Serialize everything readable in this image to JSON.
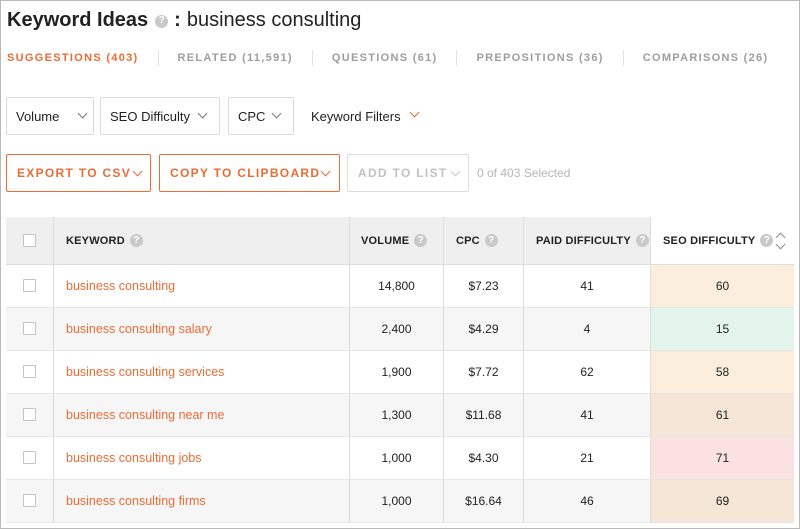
{
  "header": {
    "title": "Keyword Ideas",
    "help_icon": "question-icon",
    "separator": ":",
    "query": "business consulting"
  },
  "tabs": [
    {
      "label": "SUGGESTIONS (403)",
      "active": true
    },
    {
      "label": "RELATED (11,591)",
      "active": false
    },
    {
      "label": "QUESTIONS (61)",
      "active": false
    },
    {
      "label": "PREPOSITIONS (36)",
      "active": false
    },
    {
      "label": "COMPARISONS (26)",
      "active": false
    }
  ],
  "filters": {
    "volume": "Volume",
    "seo_difficulty": "SEO Difficulty",
    "cpc": "CPC",
    "keyword_filters": "Keyword Filters"
  },
  "actions": {
    "export": "EXPORT TO CSV",
    "copy": "COPY TO CLIPBOARD",
    "add_to_list": "ADD TO LIST",
    "selected_status": "0 of 403 Selected"
  },
  "table": {
    "columns": {
      "keyword": "KEYWORD",
      "volume": "VOLUME",
      "cpc": "CPC",
      "paid_difficulty": "PAID DIFFICULTY",
      "seo_difficulty": "SEO DIFFICULTY"
    },
    "rows": [
      {
        "keyword": "business consulting",
        "volume": "14,800",
        "cpc": "$7.23",
        "paid_difficulty": "41",
        "seo_difficulty": "60",
        "seo_color": "#fbeedd"
      },
      {
        "keyword": "business consulting salary",
        "volume": "2,400",
        "cpc": "$4.29",
        "paid_difficulty": "4",
        "seo_difficulty": "15",
        "seo_color": "#e3f5ec"
      },
      {
        "keyword": "business consulting services",
        "volume": "1,900",
        "cpc": "$7.72",
        "paid_difficulty": "62",
        "seo_difficulty": "58",
        "seo_color": "#fbeedd"
      },
      {
        "keyword": "business consulting near me",
        "volume": "1,300",
        "cpc": "$11.68",
        "paid_difficulty": "41",
        "seo_difficulty": "61",
        "seo_color": "#f5e6d8"
      },
      {
        "keyword": "business consulting jobs",
        "volume": "1,000",
        "cpc": "$4.30",
        "paid_difficulty": "21",
        "seo_difficulty": "71",
        "seo_color": "#fbe1e1"
      },
      {
        "keyword": "business consulting firms",
        "volume": "1,000",
        "cpc": "$16.64",
        "paid_difficulty": "46",
        "seo_difficulty": "69",
        "seo_color": "#f5e6d8"
      }
    ]
  },
  "colors": {
    "accent": "#ea6c35",
    "muted": "#9d9d9d"
  }
}
